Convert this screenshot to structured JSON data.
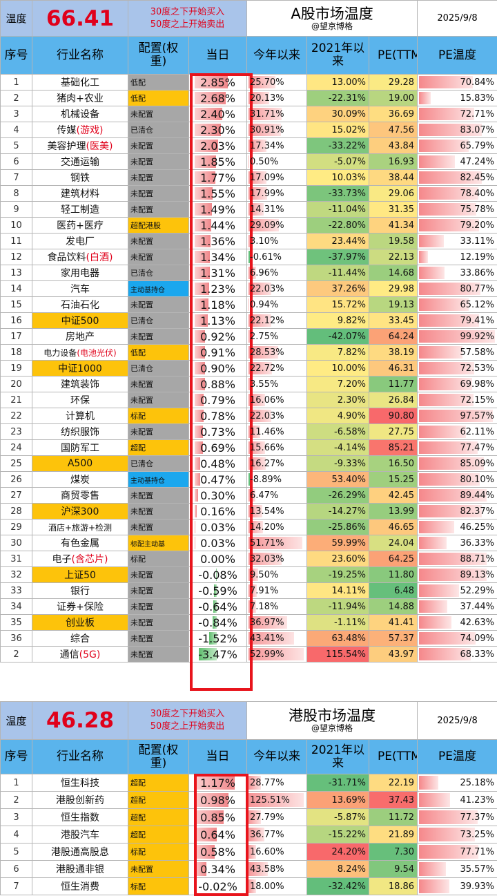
{
  "colors": {
    "header_blue": "#5ab4ec",
    "label_blue": "#a9c4ea",
    "alloc_gold": "#fdc30b",
    "alloc_blue": "#1ba7ee",
    "alloc_gray": "#a7a7a7",
    "red_text": "#e0001a",
    "box_red": "#e8141c"
  },
  "a_share": {
    "temp_label": "温度",
    "temp_value": "66.41",
    "note_line1": "30度之下开始买入",
    "note_line2": "50度之上开始卖出",
    "title": "A股市场温度",
    "subtitle": "@望京博格",
    "date": "2025/9/8",
    "headers": {
      "idx": "序号",
      "name": "行业名称",
      "alloc": "配置(权重)",
      "day": "当日",
      "ytd": "今年以来",
      "since2021": "2021年以来",
      "pe": "PE(TTM)",
      "pet": "PE温度"
    },
    "rows": [
      {
        "idx": "1",
        "name": "基础化工",
        "hl": "",
        "alloc": "低配",
        "nm_bg": "w",
        "al_bg": "gray",
        "day": "2.85%",
        "dayv": 2.85,
        "ytd": "25.70%",
        "ytdv": 25.7,
        "s21": "13.00%",
        "s21v": 13.0,
        "pe": "29.28",
        "pet": "70.84%",
        "petv": 70.84
      },
      {
        "idx": "2",
        "name": "猪肉+农业",
        "hl": "",
        "alloc": "低配",
        "nm_bg": "w",
        "al_bg": "gold",
        "day": "2.68%",
        "dayv": 2.68,
        "ytd": "20.13%",
        "ytdv": 20.13,
        "s21": "-22.31%",
        "s21v": -22.31,
        "pe": "19.00",
        "pet": "15.83%",
        "petv": 15.83
      },
      {
        "idx": "3",
        "name": "机械设备",
        "hl": "",
        "alloc": "未配置",
        "nm_bg": "w",
        "al_bg": "gray",
        "day": "2.40%",
        "dayv": 2.4,
        "ytd": "31.71%",
        "ytdv": 31.71,
        "s21": "30.09%",
        "s21v": 30.09,
        "pe": "36.69",
        "pet": "72.71%",
        "petv": 72.71
      },
      {
        "idx": "4",
        "name": "传媒",
        "hl": "(游戏)",
        "alloc": "已清仓",
        "nm_bg": "w",
        "al_bg": "gray",
        "day": "2.30%",
        "dayv": 2.3,
        "ytd": "30.91%",
        "ytdv": 30.91,
        "s21": "15.02%",
        "s21v": 15.02,
        "pe": "47.56",
        "pet": "83.07%",
        "petv": 83.07
      },
      {
        "idx": "5",
        "name": "美容护理",
        "hl": "(医美)",
        "alloc": "未配置",
        "nm_bg": "w",
        "al_bg": "gray",
        "day": "2.03%",
        "dayv": 2.03,
        "ytd": "17.34%",
        "ytdv": 17.34,
        "s21": "-33.22%",
        "s21v": -33.22,
        "pe": "43.84",
        "pet": "65.79%",
        "petv": 65.79
      },
      {
        "idx": "6",
        "name": "交通运输",
        "hl": "",
        "alloc": "未配置",
        "nm_bg": "w",
        "al_bg": "gray",
        "day": "1.85%",
        "dayv": 1.85,
        "ytd": "0.50%",
        "ytdv": 0.5,
        "s21": "-5.07%",
        "s21v": -5.07,
        "pe": "16.93",
        "pet": "47.24%",
        "petv": 47.24
      },
      {
        "idx": "7",
        "name": "钢铁",
        "hl": "",
        "alloc": "未配置",
        "nm_bg": "w",
        "al_bg": "gray",
        "day": "1.77%",
        "dayv": 1.77,
        "ytd": "17.09%",
        "ytdv": 17.09,
        "s21": "10.03%",
        "s21v": 10.03,
        "pe": "38.44",
        "pet": "82.45%",
        "petv": 82.45
      },
      {
        "idx": "8",
        "name": "建筑材料",
        "hl": "",
        "alloc": "未配置",
        "nm_bg": "w",
        "al_bg": "gray",
        "day": "1.55%",
        "dayv": 1.55,
        "ytd": "17.99%",
        "ytdv": 17.99,
        "s21": "-33.73%",
        "s21v": -33.73,
        "pe": "29.06",
        "pet": "78.40%",
        "petv": 78.4
      },
      {
        "idx": "9",
        "name": "轻工制造",
        "hl": "",
        "alloc": "未配置",
        "nm_bg": "w",
        "al_bg": "gray",
        "day": "1.49%",
        "dayv": 1.49,
        "ytd": "14.31%",
        "ytdv": 14.31,
        "s21": "-11.04%",
        "s21v": -11.04,
        "pe": "31.35",
        "pet": "75.78%",
        "petv": 75.78
      },
      {
        "idx": "10",
        "name": "医药+医疗",
        "hl": "",
        "alloc": "超配港股",
        "nm_bg": "w",
        "al_bg": "gold",
        "day": "1.44%",
        "dayv": 1.44,
        "ytd": "29.09%",
        "ytdv": 29.09,
        "s21": "-22.80%",
        "s21v": -22.8,
        "pe": "41.34",
        "pet": "79.20%",
        "petv": 79.2
      },
      {
        "idx": "11",
        "name": "发电厂",
        "hl": "",
        "alloc": "未配置",
        "nm_bg": "w",
        "al_bg": "gray",
        "day": "1.36%",
        "dayv": 1.36,
        "ytd": "3.10%",
        "ytdv": 3.1,
        "s21": "23.44%",
        "s21v": 23.44,
        "pe": "19.58",
        "pet": "33.11%",
        "petv": 33.11
      },
      {
        "idx": "12",
        "name": "食品饮料",
        "hl": "(白酒)",
        "alloc": "未配置",
        "nm_bg": "w",
        "al_bg": "gray",
        "day": "1.34%",
        "dayv": 1.34,
        "ytd": "-0.61%",
        "ytdv": -0.61,
        "s21": "-37.97%",
        "s21v": -37.97,
        "pe": "22.13",
        "pet": "12.19%",
        "petv": 12.19
      },
      {
        "idx": "13",
        "name": "家用电器",
        "hl": "",
        "alloc": "已清仓",
        "nm_bg": "w",
        "al_bg": "gray",
        "day": "1.31%",
        "dayv": 1.31,
        "ytd": "6.96%",
        "ytdv": 6.96,
        "s21": "-11.44%",
        "s21v": -11.44,
        "pe": "14.68",
        "pet": "33.86%",
        "petv": 33.86
      },
      {
        "idx": "14",
        "name": "汽车",
        "hl": "",
        "alloc": "主动基持仓",
        "nm_bg": "w",
        "al_bg": "blue",
        "day": "1.23%",
        "dayv": 1.23,
        "ytd": "22.03%",
        "ytdv": 22.03,
        "s21": "37.26%",
        "s21v": 37.26,
        "pe": "29.98",
        "pet": "80.77%",
        "petv": 80.77
      },
      {
        "idx": "15",
        "name": "石油石化",
        "hl": "",
        "alloc": "未配置",
        "nm_bg": "w",
        "al_bg": "gray",
        "day": "1.18%",
        "dayv": 1.18,
        "ytd": "0.94%",
        "ytdv": 0.94,
        "s21": "15.72%",
        "s21v": 15.72,
        "pe": "19.13",
        "pet": "65.12%",
        "petv": 65.12
      },
      {
        "idx": "16",
        "name": "中证500",
        "hl": "",
        "alloc": "已清仓",
        "nm_bg": "gold",
        "al_bg": "gray",
        "day": "1.13%",
        "dayv": 1.13,
        "ytd": "22.12%",
        "ytdv": 22.12,
        "s21": "9.82%",
        "s21v": 9.82,
        "pe": "33.45",
        "pet": "79.41%",
        "petv": 79.41
      },
      {
        "idx": "17",
        "name": "房地产",
        "hl": "",
        "alloc": "未配置",
        "nm_bg": "w",
        "al_bg": "gray",
        "day": "0.92%",
        "dayv": 0.92,
        "ytd": "2.75%",
        "ytdv": 2.75,
        "s21": "-42.07%",
        "s21v": -42.07,
        "pe": "64.24",
        "pet": "99.92%",
        "petv": 99.92
      },
      {
        "idx": "18",
        "name": "电力设备",
        "hl": "(电池光伏)",
        "alloc": "低配",
        "nm_bg": "w",
        "al_bg": "gold",
        "small": true,
        "day": "0.91%",
        "dayv": 0.91,
        "ytd": "28.53%",
        "ytdv": 28.53,
        "s21": "7.82%",
        "s21v": 7.82,
        "pe": "38.19",
        "pet": "57.58%",
        "petv": 57.58
      },
      {
        "idx": "19",
        "name": "中证1000",
        "hl": "",
        "alloc": "已清仓",
        "nm_bg": "gold",
        "al_bg": "gray",
        "day": "0.90%",
        "dayv": 0.9,
        "ytd": "22.72%",
        "ytdv": 22.72,
        "s21": "10.00%",
        "s21v": 10.0,
        "pe": "46.31",
        "pet": "72.53%",
        "petv": 72.53
      },
      {
        "idx": "20",
        "name": "建筑装饰",
        "hl": "",
        "alloc": "未配置",
        "nm_bg": "w",
        "al_bg": "gray",
        "day": "0.88%",
        "dayv": 0.88,
        "ytd": "3.55%",
        "ytdv": 3.55,
        "s21": "7.20%",
        "s21v": 7.2,
        "pe": "11.77",
        "pet": "69.98%",
        "petv": 69.98
      },
      {
        "idx": "21",
        "name": "环保",
        "hl": "",
        "alloc": "未配置",
        "nm_bg": "w",
        "al_bg": "gray",
        "day": "0.79%",
        "dayv": 0.79,
        "ytd": "16.06%",
        "ytdv": 16.06,
        "s21": "2.30%",
        "s21v": 2.3,
        "pe": "26.84",
        "pet": "72.15%",
        "petv": 72.15
      },
      {
        "idx": "22",
        "name": "计算机",
        "hl": "",
        "alloc": "标配",
        "nm_bg": "w",
        "al_bg": "gold",
        "day": "0.78%",
        "dayv": 0.78,
        "ytd": "22.03%",
        "ytdv": 22.03,
        "s21": "4.90%",
        "s21v": 4.9,
        "pe": "90.80",
        "pet": "97.57%",
        "petv": 97.57
      },
      {
        "idx": "23",
        "name": "纺织服饰",
        "hl": "",
        "alloc": "未配置",
        "nm_bg": "w",
        "al_bg": "gray",
        "day": "0.73%",
        "dayv": 0.73,
        "ytd": "11.46%",
        "ytdv": 11.46,
        "s21": "-6.58%",
        "s21v": -6.58,
        "pe": "27.75",
        "pet": "62.11%",
        "petv": 62.11
      },
      {
        "idx": "24",
        "name": "国防军工",
        "hl": "",
        "alloc": "超配",
        "nm_bg": "w",
        "al_bg": "gold",
        "day": "0.69%",
        "dayv": 0.69,
        "ytd": "15.66%",
        "ytdv": 15.66,
        "s21": "-4.14%",
        "s21v": -4.14,
        "pe": "85.21",
        "pet": "77.47%",
        "petv": 77.47
      },
      {
        "idx": "25",
        "name": "A500",
        "hl": "",
        "alloc": "已清仓",
        "nm_bg": "gold",
        "al_bg": "gray",
        "day": "0.48%",
        "dayv": 0.48,
        "ytd": "16.27%",
        "ytdv": 16.27,
        "s21": "-9.33%",
        "s21v": -9.33,
        "pe": "16.50",
        "pet": "85.09%",
        "petv": 85.09
      },
      {
        "idx": "26",
        "name": "煤炭",
        "hl": "",
        "alloc": "主动基持仓",
        "nm_bg": "w",
        "al_bg": "blue",
        "day": "0.47%",
        "dayv": 0.47,
        "ytd": "-8.89%",
        "ytdv": -8.89,
        "s21": "53.40%",
        "s21v": 53.4,
        "pe": "15.25",
        "pet": "80.10%",
        "petv": 80.1
      },
      {
        "idx": "27",
        "name": "商贸零售",
        "hl": "",
        "alloc": "未配置",
        "nm_bg": "w",
        "al_bg": "gray",
        "day": "0.30%",
        "dayv": 0.3,
        "ytd": "6.47%",
        "ytdv": 6.47,
        "s21": "-26.29%",
        "s21v": -26.29,
        "pe": "42.45",
        "pet": "89.44%",
        "petv": 89.44
      },
      {
        "idx": "28",
        "name": "沪深300",
        "hl": "",
        "alloc": "未配置",
        "nm_bg": "gold",
        "al_bg": "gray",
        "day": "0.16%",
        "dayv": 0.16,
        "ytd": "13.54%",
        "ytdv": 13.54,
        "s21": "-14.27%",
        "s21v": -14.27,
        "pe": "13.99",
        "pet": "82.37%",
        "petv": 82.37
      },
      {
        "idx": "29",
        "name": "酒店+旅游+检测",
        "hl": "",
        "alloc": "未配置",
        "nm_bg": "w",
        "al_bg": "gray",
        "small": true,
        "day": "0.03%",
        "dayv": 0.03,
        "ytd": "14.20%",
        "ytdv": 14.2,
        "s21": "-25.86%",
        "s21v": -25.86,
        "pe": "46.65",
        "pet": "46.25%",
        "petv": 46.25
      },
      {
        "idx": "30",
        "name": "有色金属",
        "hl": "",
        "alloc": "标配主动基",
        "nm_bg": "w",
        "al_bg": "gold",
        "day": "0.03%",
        "dayv": 0.03,
        "ytd": "51.71%",
        "ytdv": 51.71,
        "s21": "59.99%",
        "s21v": 59.99,
        "pe": "24.04",
        "pet": "36.33%",
        "petv": 36.33
      },
      {
        "idx": "31",
        "name": "电子",
        "hl": "(含芯片)",
        "alloc": "标配",
        "nm_bg": "w",
        "al_bg": "gray",
        "day": "0.00%",
        "dayv": 0.0,
        "ytd": "32.03%",
        "ytdv": 32.03,
        "s21": "23.60%",
        "s21v": 23.6,
        "pe": "64.25",
        "pet": "88.71%",
        "petv": 88.71
      },
      {
        "idx": "32",
        "name": "上证50",
        "hl": "",
        "alloc": "未配置",
        "nm_bg": "gold",
        "al_bg": "gray",
        "day": "-0.08%",
        "dayv": -0.08,
        "ytd": "9.50%",
        "ytdv": 9.5,
        "s21": "-19.25%",
        "s21v": -19.25,
        "pe": "11.80",
        "pet": "89.13%",
        "petv": 89.13
      },
      {
        "idx": "33",
        "name": "银行",
        "hl": "",
        "alloc": "未配置",
        "nm_bg": "w",
        "al_bg": "gray",
        "day": "-0.59%",
        "dayv": -0.59,
        "ytd": "7.91%",
        "ytdv": 7.91,
        "s21": "14.11%",
        "s21v": 14.11,
        "pe": "6.48",
        "pet": "52.29%",
        "petv": 52.29
      },
      {
        "idx": "34",
        "name": "证券+保险",
        "hl": "",
        "alloc": "未配置",
        "nm_bg": "w",
        "al_bg": "gray",
        "day": "-0.64%",
        "dayv": -0.64,
        "ytd": "7.18%",
        "ytdv": 7.18,
        "s21": "-11.94%",
        "s21v": -11.94,
        "pe": "14.88",
        "pet": "37.44%",
        "petv": 37.44
      },
      {
        "idx": "35",
        "name": "创业板",
        "hl": "",
        "alloc": "未配置",
        "nm_bg": "gold",
        "al_bg": "gray",
        "day": "-0.84%",
        "dayv": -0.84,
        "ytd": "36.97%",
        "ytdv": 36.97,
        "s21": "-1.11%",
        "s21v": -1.11,
        "pe": "41.41",
        "pet": "42.63%",
        "petv": 42.63
      },
      {
        "idx": "36",
        "name": "综合",
        "hl": "",
        "alloc": "未配置",
        "nm_bg": "w",
        "al_bg": "gray",
        "day": "-1.52%",
        "dayv": -1.52,
        "ytd": "43.41%",
        "ytdv": 43.41,
        "s21": "63.48%",
        "s21v": 63.48,
        "pe": "57.37",
        "pet": "74.09%",
        "petv": 74.09
      },
      {
        "idx": "2",
        "name": "通信",
        "hl": "(5G)",
        "alloc": "未配置",
        "nm_bg": "w",
        "al_bg": "gray",
        "day": "-3.47%",
        "dayv": -3.47,
        "ytd": "52.99%",
        "ytdv": 52.99,
        "s21": "115.54%",
        "s21v": 115.54,
        "pe": "43.97",
        "pet": "68.33%",
        "petv": 68.33
      }
    ]
  },
  "hk": {
    "temp_label": "温度",
    "temp_value": "46.28",
    "note_line1": "30度之下开始买入",
    "note_line2": "50度之上开始卖出",
    "title": "港股市场温度",
    "subtitle": "@望京博格",
    "date": "2025/9/8",
    "headers": {
      "idx": "序号",
      "name": "行业名称",
      "alloc": "配置(权重)",
      "day": "当日",
      "ytd": "今年以来",
      "since2021": "2021年以来",
      "pe": "PE(TTM)",
      "pet": "PE温度"
    },
    "rows": [
      {
        "idx": "1",
        "name": "恒生科技",
        "hl": "",
        "alloc": "超配",
        "nm_bg": "w",
        "al_bg": "gold",
        "day": "1.17%",
        "dayv": 1.17,
        "ytd": "28.77%",
        "ytdv": 28.77,
        "s21": "-31.71%",
        "s21v": -31.71,
        "pe": "22.19",
        "pet": "25.18%",
        "petv": 25.18
      },
      {
        "idx": "2",
        "name": "港股创新药",
        "hl": "",
        "alloc": "超配",
        "nm_bg": "w",
        "al_bg": "gold",
        "day": "0.98%",
        "dayv": 0.98,
        "ytd": "125.51%",
        "ytdv": 125.51,
        "s21": "13.69%",
        "s21v": 13.69,
        "pe": "37.43",
        "pet": "41.23%",
        "petv": 41.23
      },
      {
        "idx": "3",
        "name": "恒生指数",
        "hl": "",
        "alloc": "超配",
        "nm_bg": "w",
        "al_bg": "gold",
        "day": "0.85%",
        "dayv": 0.85,
        "ytd": "27.79%",
        "ytdv": 27.79,
        "s21": "-5.87%",
        "s21v": -5.87,
        "pe": "11.72",
        "pet": "77.37%",
        "petv": 77.37
      },
      {
        "idx": "4",
        "name": "港股汽车",
        "hl": "",
        "alloc": "超配",
        "nm_bg": "w",
        "al_bg": "gold",
        "day": "0.64%",
        "dayv": 0.64,
        "ytd": "36.77%",
        "ytdv": 36.77,
        "s21": "-15.22%",
        "s21v": -15.22,
        "pe": "21.89",
        "pet": "73.25%",
        "petv": 73.25
      },
      {
        "idx": "5",
        "name": "港股通高股息",
        "hl": "",
        "alloc": "标配",
        "nm_bg": "w",
        "al_bg": "gold",
        "day": "0.58%",
        "dayv": 0.58,
        "ytd": "16.60%",
        "ytdv": 16.6,
        "s21": "24.20%",
        "s21v": 24.2,
        "pe": "7.30",
        "pet": "77.71%",
        "petv": 77.71
      },
      {
        "idx": "6",
        "name": "港股通非银",
        "hl": "",
        "alloc": "未配置",
        "nm_bg": "w",
        "al_bg": "gold",
        "day": "0.34%",
        "dayv": 0.34,
        "ytd": "43.58%",
        "ytdv": 43.58,
        "s21": "8.24%",
        "s21v": 8.24,
        "pe": "9.54",
        "pet": "35.57%",
        "petv": 35.57
      },
      {
        "idx": "7",
        "name": "恒生消费",
        "hl": "",
        "alloc": "标配",
        "nm_bg": "w",
        "al_bg": "gold",
        "day": "-0.02%",
        "dayv": -0.02,
        "ytd": "18.00%",
        "ytdv": 18.0,
        "s21": "-32.42%",
        "s21v": -32.42,
        "pe": "18.86",
        "pet": "39.93%",
        "petv": 39.93
      }
    ]
  }
}
